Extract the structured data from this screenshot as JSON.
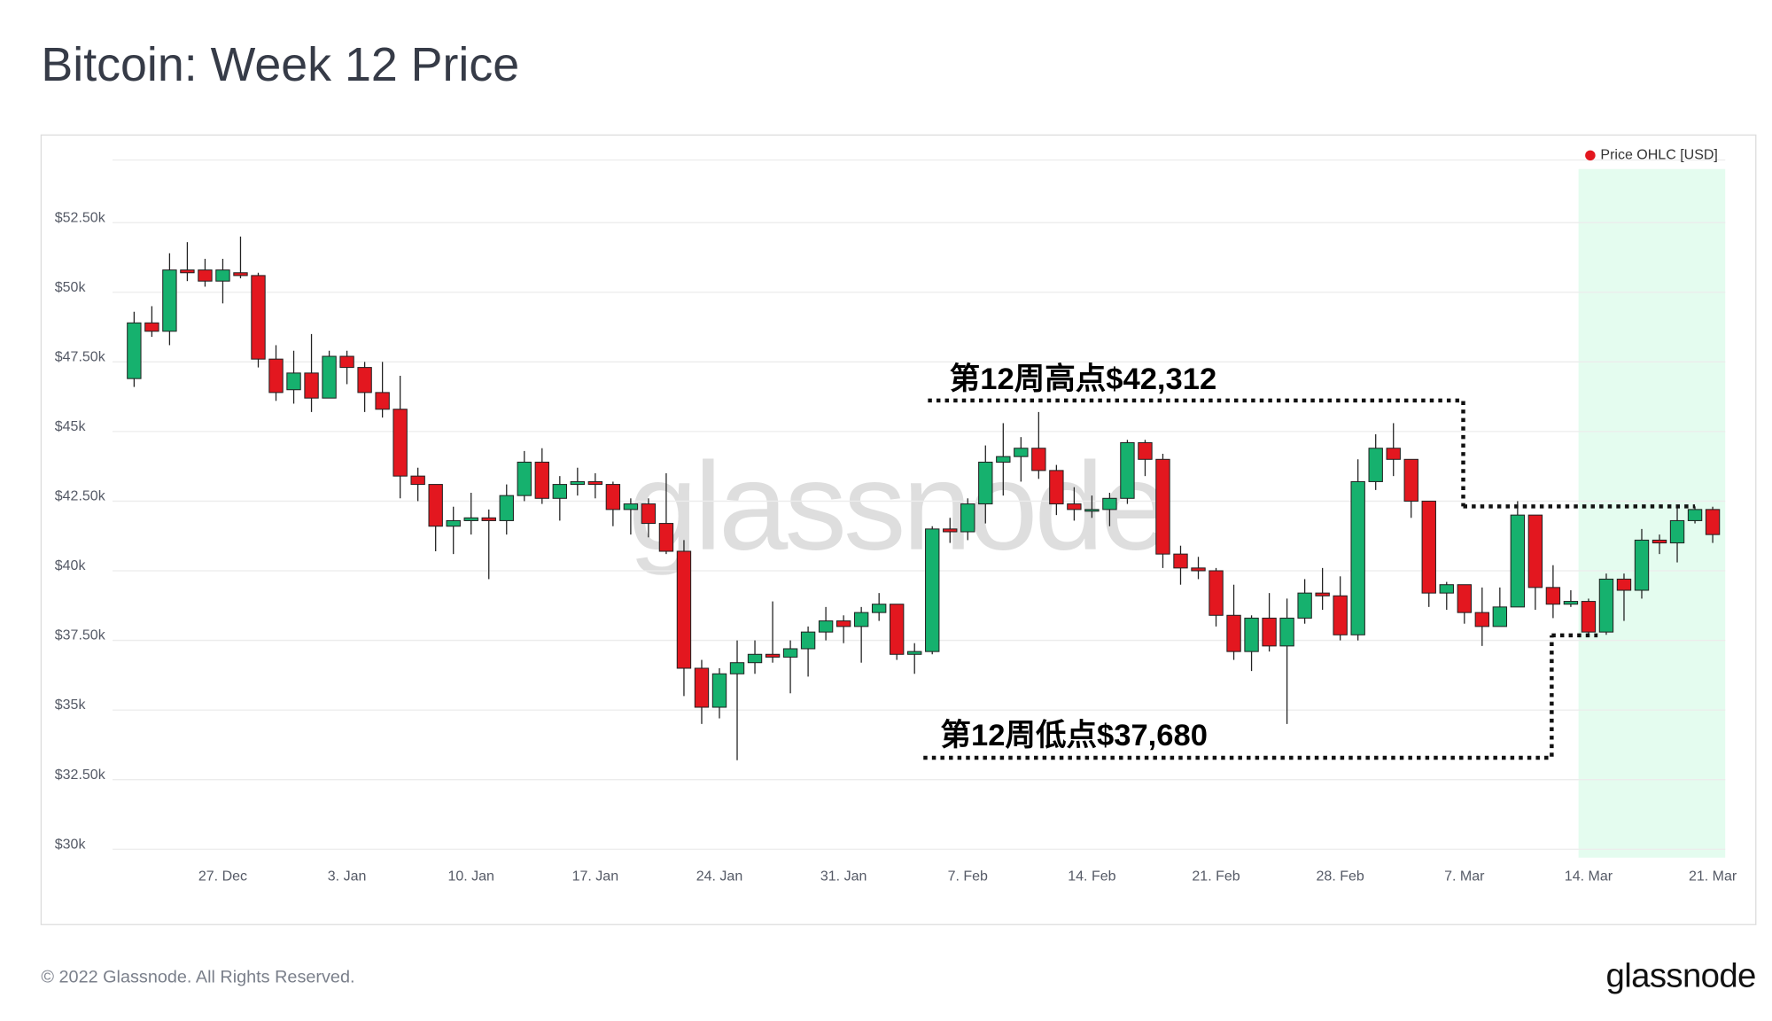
{
  "header": {
    "title": "Bitcoin: Week 12 Price"
  },
  "footer": {
    "copyright": "© 2022 Glassnode. All Rights Reserved.",
    "logo": "glassnode"
  },
  "chart_data": {
    "type": "candlestick",
    "watermark": "glassnode",
    "categories": [
      null,
      null,
      null,
      null,
      null,
      "27. Dec",
      null,
      null,
      null,
      null,
      null,
      null,
      "3. Jan",
      null,
      null,
      null,
      null,
      null,
      null,
      "10. Jan",
      null,
      null,
      null,
      null,
      null,
      null,
      "17. Jan",
      null,
      null,
      null,
      null,
      null,
      null,
      "24. Jan",
      null,
      null,
      null,
      null,
      null,
      null,
      "31. Jan",
      null,
      null,
      null,
      null,
      null,
      null,
      "7. Feb",
      null,
      null,
      null,
      null,
      null,
      null,
      "14. Feb",
      null,
      null,
      null,
      null,
      null,
      null,
      "21. Feb",
      null,
      null,
      null,
      null,
      null,
      null,
      "28. Feb",
      null,
      null,
      null,
      null,
      null,
      null,
      "7. Mar",
      null,
      null,
      null,
      null,
      null,
      null,
      "14. Mar",
      null,
      null,
      null,
      null,
      null,
      null,
      "21. Mar"
    ],
    "series": [
      {
        "name": "Price OHLC [USD]",
        "color": "#e3171f",
        "up_color": "#16b16e",
        "down_color": "#e3171f",
        "open": [
          46900,
          48900,
          48600,
          50800,
          50800,
          50400,
          50700,
          50600,
          47600,
          46500,
          47100,
          46200,
          47700,
          47300,
          46400,
          45800,
          43400,
          43100,
          41600,
          41800,
          41900,
          41800,
          42700,
          43900,
          42600,
          43100,
          43200,
          43100,
          42200,
          42400,
          41700,
          40700,
          36500,
          35100,
          36300,
          36700,
          37000,
          36900,
          37200,
          37800,
          38200,
          38000,
          38500,
          38800,
          37000,
          37100,
          41500,
          41400,
          42400,
          43900,
          44100,
          44400,
          43600,
          42400,
          42200,
          42200,
          42600,
          44600,
          44000,
          40600,
          40100,
          40000,
          38400,
          37100,
          38300,
          37300,
          38300,
          39200,
          39100,
          37700,
          43200,
          44400,
          44000,
          42500,
          39200,
          39500,
          38500,
          38000,
          38700,
          42000,
          39400,
          38800,
          38900,
          37800,
          39700,
          39300,
          41100,
          41000,
          41800,
          42200
        ],
        "high": [
          49300,
          49500,
          51400,
          51800,
          51200,
          51200,
          52000,
          50700,
          48100,
          47900,
          48500,
          47900,
          47900,
          47500,
          47500,
          47000,
          43700,
          43100,
          42300,
          42800,
          42200,
          43100,
          44300,
          44400,
          43400,
          43700,
          43500,
          43200,
          42600,
          42600,
          43500,
          41100,
          36800,
          36500,
          37500,
          37500,
          38900,
          37500,
          38000,
          38700,
          38400,
          38700,
          39200,
          38800,
          37400,
          41600,
          41900,
          42600,
          44500,
          45300,
          44800,
          45700,
          43800,
          43000,
          42700,
          42800,
          44700,
          44700,
          44200,
          40900,
          40500,
          40100,
          39500,
          38400,
          39200,
          39000,
          39700,
          40100,
          39800,
          44000,
          44900,
          45300,
          44000,
          42500,
          39600,
          39500,
          39400,
          39400,
          42500,
          42000,
          40200,
          39300,
          39000,
          39900,
          39900,
          41500,
          41300,
          42300,
          42312,
          42300
        ],
        "low": [
          46600,
          48400,
          48100,
          50400,
          50200,
          49600,
          50500,
          47300,
          46100,
          46000,
          45700,
          46200,
          46700,
          45700,
          45500,
          42600,
          42500,
          40700,
          40600,
          41300,
          39700,
          41300,
          42500,
          42400,
          41800,
          42700,
          42600,
          41600,
          41300,
          41200,
          40600,
          35500,
          34500,
          34700,
          33200,
          36300,
          36700,
          35600,
          36200,
          37500,
          37400,
          36700,
          38200,
          36800,
          36300,
          37000,
          41000,
          41100,
          41700,
          42700,
          43200,
          43300,
          42000,
          41800,
          41900,
          41600,
          42400,
          43400,
          40100,
          39500,
          39700,
          38000,
          36800,
          36400,
          37100,
          34500,
          38100,
          38600,
          37500,
          37500,
          42900,
          43400,
          41900,
          38700,
          38600,
          38100,
          37300,
          38000,
          38700,
          38600,
          38300,
          38700,
          37680,
          37700,
          38200,
          39000,
          40600,
          40300,
          41700,
          41000
        ],
        "close": [
          48900,
          48600,
          50800,
          50700,
          50400,
          50800,
          50600,
          47600,
          46400,
          47100,
          46200,
          47700,
          47300,
          46400,
          45800,
          43400,
          43100,
          41600,
          41800,
          41900,
          41800,
          42700,
          43900,
          42600,
          43100,
          43200,
          43100,
          42200,
          42400,
          41700,
          40700,
          36500,
          35100,
          36300,
          36700,
          37000,
          36900,
          37200,
          37800,
          38200,
          38000,
          38500,
          38800,
          37000,
          37100,
          41500,
          41400,
          42400,
          43900,
          44100,
          44400,
          43600,
          42400,
          42200,
          42200,
          42600,
          44600,
          44000,
          40600,
          40100,
          40000,
          38400,
          37100,
          38300,
          37300,
          38300,
          39200,
          39100,
          37700,
          43200,
          44400,
          44000,
          42500,
          39200,
          39500,
          38500,
          38000,
          38700,
          42000,
          39400,
          38800,
          38900,
          37800,
          39700,
          39300,
          41100,
          41000,
          41800,
          42200,
          41300
        ]
      }
    ],
    "ylim": [
      29700,
      54750
    ],
    "yticks": [
      {
        "value": 30000,
        "label": "$30k"
      },
      {
        "value": 32500,
        "label": "$32.50k"
      },
      {
        "value": 35000,
        "label": "$35k"
      },
      {
        "value": 37500,
        "label": "$37.50k"
      },
      {
        "value": 40000,
        "label": "$40k"
      },
      {
        "value": 42500,
        "label": "$42.50k"
      },
      {
        "value": 45000,
        "label": "$45k"
      },
      {
        "value": 47500,
        "label": "$47.50k"
      },
      {
        "value": 50000,
        "label": "$50k"
      },
      {
        "value": 52500,
        "label": "$52.50k"
      }
    ],
    "grid": true,
    "legend": "top-right",
    "annotations": [
      {
        "text": "第12周高点$42,312",
        "value": 42312
      },
      {
        "text": "第12周低点$37,680",
        "value": 37680
      }
    ]
  }
}
